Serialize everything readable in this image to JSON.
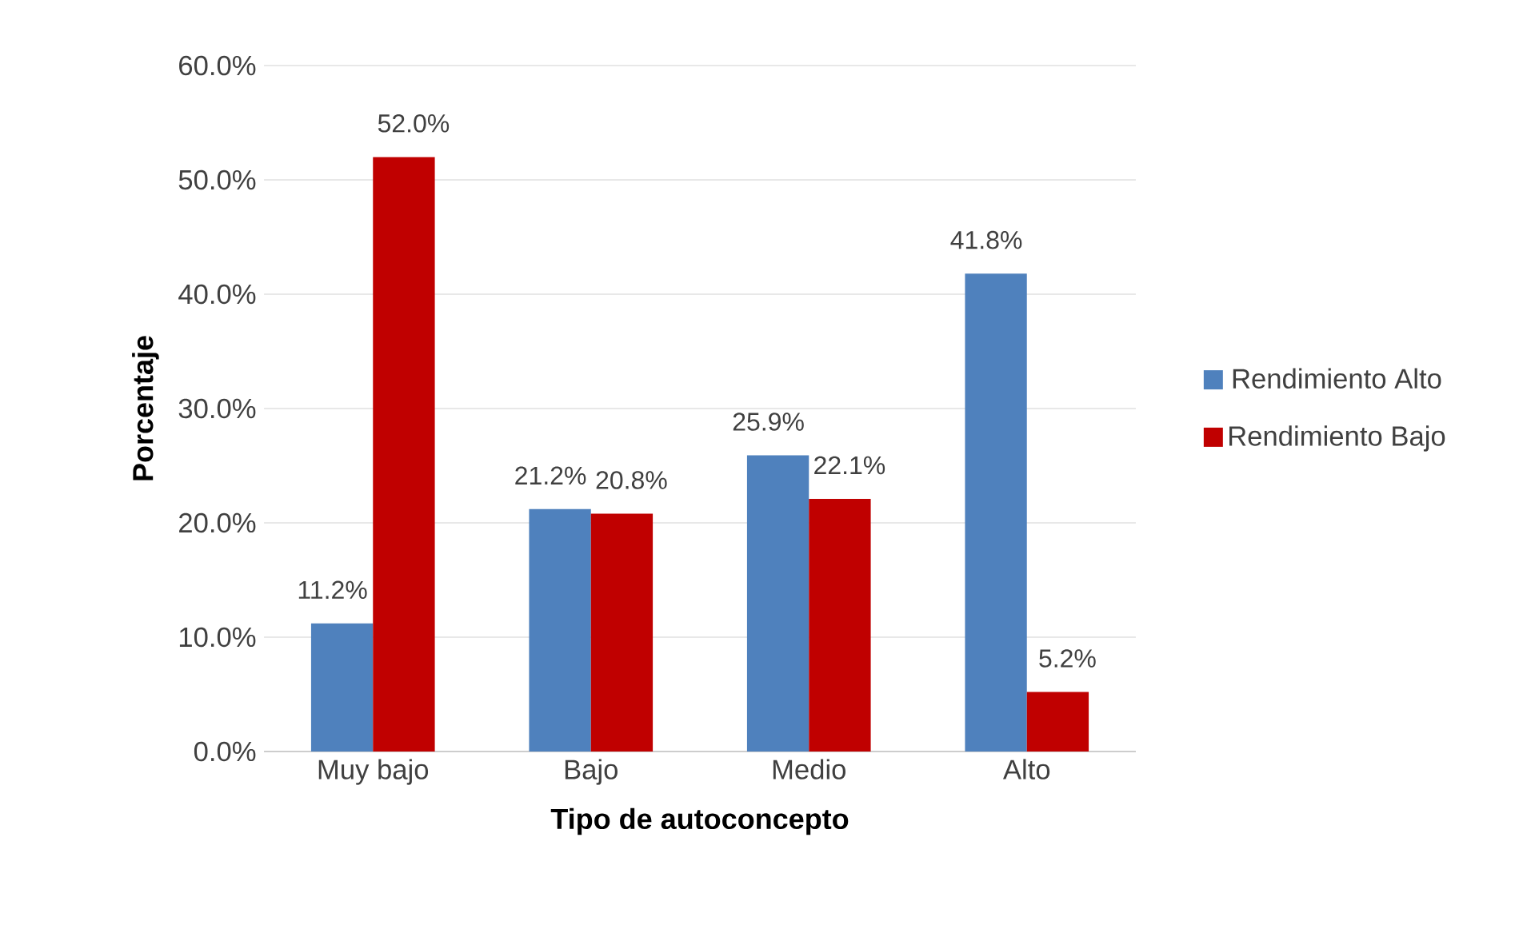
{
  "chart_data": {
    "type": "bar",
    "xlabel": "Tipo de autoconcepto",
    "ylabel": "Porcentaje",
    "categories": [
      "Muy bajo",
      "Bajo",
      "Medio",
      "Alto"
    ],
    "series": [
      {
        "name": "Rendimiento Alto",
        "color": "#4f81bd",
        "values": [
          11.2,
          21.2,
          25.9,
          41.8
        ],
        "value_labels": [
          "11.2%",
          "21.2%",
          "25.9%",
          "41.8%"
        ]
      },
      {
        "name": "Rendimiento Bajo",
        "color": "#c00000",
        "values": [
          52.0,
          20.8,
          22.1,
          5.2
        ],
        "value_labels": [
          "52.0%",
          "20.8%",
          "22.1%",
          "5.2%"
        ]
      }
    ],
    "ylim": [
      0,
      60
    ],
    "yticks": [
      {
        "value": 0,
        "label": "0.0%"
      },
      {
        "value": 10,
        "label": "10.0%"
      },
      {
        "value": 20,
        "label": "20.0%"
      },
      {
        "value": 30,
        "label": "30.0%"
      },
      {
        "value": 40,
        "label": "40.0%"
      },
      {
        "value": 50,
        "label": "50.0%"
      },
      {
        "value": 60,
        "label": "60.0%"
      }
    ],
    "grid": "y",
    "legend": "right"
  }
}
